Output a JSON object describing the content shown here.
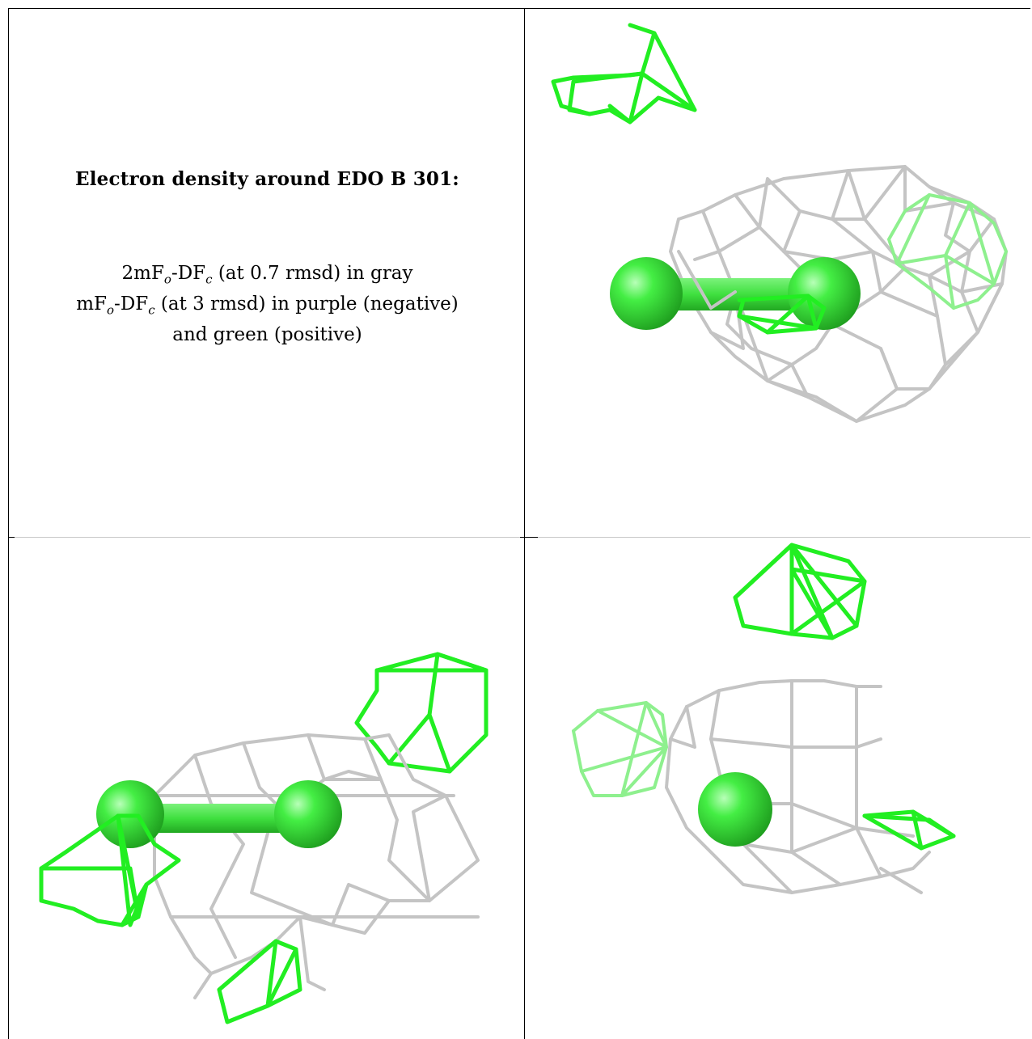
{
  "caption": {
    "title": "Electron density around EDO B 301:",
    "line1_prefix": "2mF",
    "line1_sub1": "o",
    "line1_mid": "-DF",
    "line1_sub2": "c",
    "line1_suffix": " (at 0.7 rmsd) in gray",
    "line2_prefix": "mF",
    "line2_sub1": "o",
    "line2_mid": "-DF",
    "line2_sub2": "c",
    "line2_suffix": " (at 3 rmsd) in purple (negative)",
    "line3": "and green (positive)"
  },
  "colors": {
    "density_2fofc": "#c4c4c4",
    "density_positive": "#22ee22",
    "atom": "#33dd33",
    "border": "#000000"
  },
  "views": [
    {
      "name": "view-top-right",
      "icon": "molecule-density-view"
    },
    {
      "name": "view-bottom-left",
      "icon": "molecule-density-view"
    },
    {
      "name": "view-bottom-right",
      "icon": "molecule-density-view"
    }
  ]
}
